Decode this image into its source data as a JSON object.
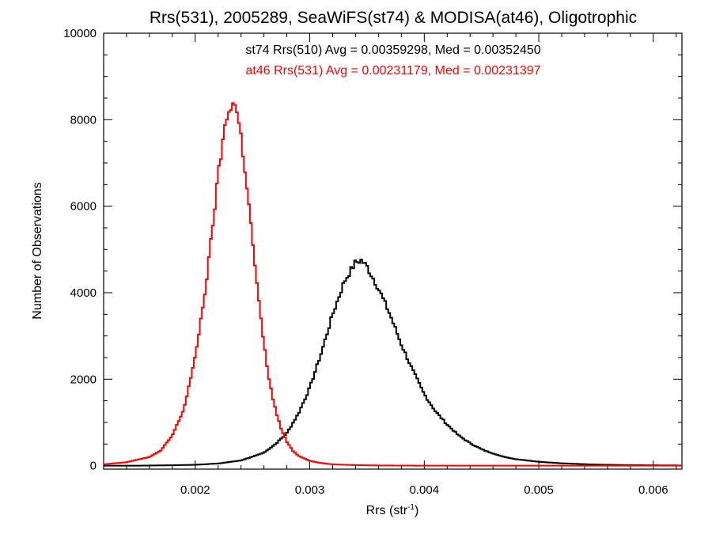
{
  "chart_data": {
    "type": "line",
    "title": "Rrs(531), 2005289, SeaWiFS(st74) & MODISA(at46), Oligotrophic",
    "xlabel_base": "Rrs (str",
    "xlabel_sup": "-1",
    "xlabel_close": ")",
    "ylabel": "Number of Observations",
    "xlim": [
      0.0012,
      0.00625
    ],
    "ylim": [
      -80,
      10000
    ],
    "xticks": [
      0.002,
      0.003,
      0.004,
      0.005,
      0.006
    ],
    "xtick_labels": [
      "0.002",
      "0.003",
      "0.004",
      "0.005",
      "0.006"
    ],
    "yticks": [
      0,
      2000,
      4000,
      6000,
      8000,
      10000
    ],
    "ytick_labels": [
      "0",
      "2000",
      "4000",
      "6000",
      "8000",
      "10000"
    ],
    "grid": false,
    "annotations": [
      {
        "text": "st74 Rrs(510) Avg = 0.00359298, Med = 0.00352450",
        "color": "#000000"
      },
      {
        "text": "at46 Rrs(531) Avg = 0.00231179, Med = 0.00231397",
        "color": "#ff0000"
      }
    ],
    "series": [
      {
        "color": "#000000",
        "x": [
          0.0012,
          0.0015,
          0.0018,
          0.002,
          0.0022,
          0.0024,
          0.0026,
          0.0027,
          0.0028,
          0.0029,
          0.003,
          0.0031,
          0.0032,
          0.0033,
          0.0034,
          0.00345,
          0.0035,
          0.0036,
          0.0037,
          0.0038,
          0.0039,
          0.004,
          0.0041,
          0.0042,
          0.0043,
          0.0044,
          0.0045,
          0.0046,
          0.0047,
          0.0048,
          0.005,
          0.0052,
          0.0055,
          0.0058,
          0.00625
        ],
        "y": [
          0,
          0,
          10,
          20,
          50,
          120,
          300,
          500,
          750,
          1200,
          1800,
          2600,
          3500,
          4250,
          4700,
          4750,
          4600,
          4100,
          3500,
          2800,
          2200,
          1650,
          1250,
          950,
          700,
          520,
          380,
          280,
          200,
          150,
          90,
          55,
          25,
          12,
          5
        ]
      },
      {
        "color": "#ff0000",
        "x": [
          0.0012,
          0.0014,
          0.0016,
          0.0017,
          0.0018,
          0.0019,
          0.002,
          0.0021,
          0.00215,
          0.0022,
          0.00225,
          0.0023,
          0.00233,
          0.00236,
          0.0024,
          0.00245,
          0.0025,
          0.00255,
          0.0026,
          0.00265,
          0.0027,
          0.00275,
          0.0028,
          0.00285,
          0.0029,
          0.003,
          0.0031,
          0.0032,
          0.0034,
          0.0036,
          0.004,
          0.005,
          0.00625
        ],
        "y": [
          30,
          80,
          200,
          350,
          700,
          1300,
          2500,
          4300,
          5500,
          6700,
          7700,
          8300,
          8400,
          8250,
          7600,
          6500,
          5200,
          3900,
          2800,
          1900,
          1300,
          850,
          550,
          350,
          230,
          110,
          60,
          30,
          12,
          5,
          0,
          0,
          0
        ]
      }
    ]
  }
}
